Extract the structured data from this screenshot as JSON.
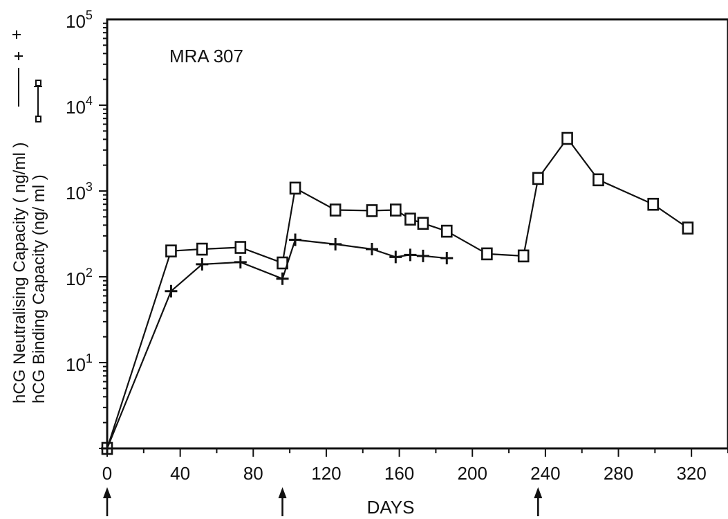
{
  "chart_data": {
    "type": "line",
    "annotation": "MRA 307",
    "xlabel": "DAYS",
    "ylabel_neutralising": "hCG Neutralising Capacity ( ng/ml )",
    "ylabel_binding": "hCG Binding Capacity (ng/ ml )",
    "xlim": [
      0,
      340
    ],
    "ylim": [
      1,
      100000
    ],
    "yscale": "log",
    "x_ticks": [
      0,
      40,
      80,
      120,
      160,
      200,
      240,
      280,
      320
    ],
    "y_tick_labels": [
      {
        "base": "10",
        "exp": "5",
        "value": 100000
      },
      {
        "base": "10",
        "exp": "4",
        "value": 10000
      },
      {
        "base": "10",
        "exp": "3",
        "value": 1000
      },
      {
        "base": "10",
        "exp": "2",
        "value": 100
      },
      {
        "base": "10",
        "exp": "1",
        "value": 10
      }
    ],
    "injection_days": [
      0,
      96,
      236
    ],
    "grid": false,
    "series": [
      {
        "name": "hCG Binding Capacity",
        "marker": "square",
        "segments": [
          [
            [
              0,
              1
            ],
            [
              35,
              200
            ],
            [
              52,
              210
            ],
            [
              73,
              220
            ],
            [
              96,
              145
            ],
            [
              103,
              1080
            ],
            [
              125,
              600
            ],
            [
              145,
              590
            ],
            [
              158,
              600
            ],
            [
              166,
              470
            ],
            [
              173,
              420
            ],
            [
              186,
              340
            ],
            [
              208,
              185
            ],
            [
              228,
              175
            ]
          ],
          [
            [
              228,
              175
            ],
            [
              236,
              1400
            ],
            [
              252,
              4100
            ],
            [
              269,
              1350
            ],
            [
              299,
              700
            ],
            [
              318,
              370
            ]
          ]
        ]
      },
      {
        "name": "hCG Neutralising Capacity",
        "marker": "plus",
        "segments": [
          [
            [
              0,
              1
            ],
            [
              35,
              68
            ],
            [
              52,
              140
            ],
            [
              73,
              148
            ],
            [
              96,
              95
            ],
            [
              103,
              270
            ],
            [
              125,
              240
            ],
            [
              145,
              210
            ],
            [
              158,
              170
            ],
            [
              166,
              180
            ],
            [
              173,
              175
            ],
            [
              186,
              165
            ]
          ]
        ]
      }
    ]
  }
}
